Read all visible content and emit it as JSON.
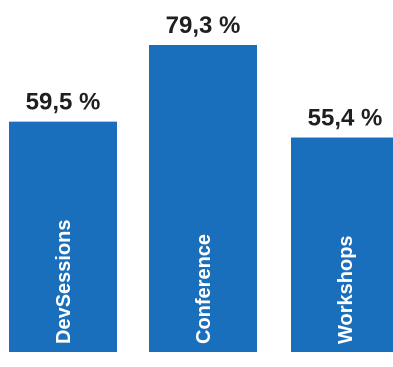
{
  "chart_data": {
    "type": "bar",
    "title": "",
    "xlabel": "",
    "ylabel": "",
    "categories": [
      "DevSessions",
      "Conference",
      "Workshops"
    ],
    "values": [
      59.5,
      79.3,
      55.4
    ],
    "value_labels": [
      "59,5 %",
      "79,3 %",
      "55,4 %"
    ],
    "unit": "%",
    "ylim": [
      0,
      100
    ],
    "grid": false,
    "legend": "none",
    "bar_color": "#1a6fbd",
    "label_color": "#1f1f1f",
    "category_label_color": "#ffffff"
  }
}
